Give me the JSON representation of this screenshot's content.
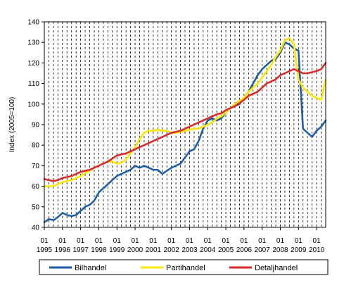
{
  "chart_data": {
    "type": "line",
    "title": "",
    "xlabel": "",
    "ylabel": "Index (2005=100)",
    "ylim": [
      40,
      140
    ],
    "y_ticks": [
      40,
      50,
      60,
      70,
      80,
      90,
      100,
      110,
      120,
      130,
      140
    ],
    "x_range": [
      1995.0,
      2010.5
    ],
    "x_ticks": [
      {
        "year": 1995,
        "month_label": "01",
        "year_label": "1995"
      },
      {
        "year": 1996,
        "month_label": "01",
        "year_label": "1996"
      },
      {
        "year": 1997,
        "month_label": "01",
        "year_label": "1997"
      },
      {
        "year": 1998,
        "month_label": "01",
        "year_label": "1998"
      },
      {
        "year": 1999,
        "month_label": "01",
        "year_label": "1999"
      },
      {
        "year": 2000,
        "month_label": "01",
        "year_label": "2000"
      },
      {
        "year": 2001,
        "month_label": "01",
        "year_label": "2001"
      },
      {
        "year": 2002,
        "month_label": "01",
        "year_label": "2002"
      },
      {
        "year": 2003,
        "month_label": "01",
        "year_label": "2003"
      },
      {
        "year": 2004,
        "month_label": "01",
        "year_label": "2004"
      },
      {
        "year": 2005,
        "month_label": "01",
        "year_label": "2005"
      },
      {
        "year": 2006,
        "month_label": "01",
        "year_label": "2006"
      },
      {
        "year": 2007,
        "month_label": "01",
        "year_label": "2007"
      },
      {
        "year": 2008,
        "month_label": "01",
        "year_label": "2008"
      },
      {
        "year": 2009,
        "month_label": "01",
        "year_label": "2009"
      },
      {
        "year": 2010,
        "month_label": "01",
        "year_label": "2010"
      }
    ],
    "grid": {
      "horizontal": false,
      "vertical": "dashed-quarterly"
    },
    "legend_position": "bottom",
    "series": [
      {
        "name": "Bilhandel",
        "color": "#1f5fa6",
        "x": [
          1995.0,
          1995.25,
          1995.5,
          1995.75,
          1996.0,
          1996.25,
          1996.5,
          1996.75,
          1997.0,
          1997.25,
          1997.5,
          1997.75,
          1998.0,
          1998.25,
          1998.5,
          1998.75,
          1999.0,
          1999.25,
          1999.5,
          1999.75,
          2000.0,
          2000.25,
          2000.5,
          2000.75,
          2001.0,
          2001.25,
          2001.5,
          2001.75,
          2002.0,
          2002.25,
          2002.5,
          2002.75,
          2003.0,
          2003.25,
          2003.5,
          2003.75,
          2004.0,
          2004.25,
          2004.5,
          2004.75,
          2005.0,
          2005.25,
          2005.5,
          2005.75,
          2006.0,
          2006.25,
          2006.5,
          2006.75,
          2007.0,
          2007.25,
          2007.5,
          2007.75,
          2008.0,
          2008.25,
          2008.5,
          2008.75,
          2009.0,
          2009.25,
          2009.5,
          2009.75,
          2010.0,
          2010.25,
          2010.5
        ],
        "values": [
          42.5,
          44,
          43.5,
          45,
          47,
          46,
          45.5,
          46,
          48,
          50,
          51,
          53,
          57,
          59,
          61,
          63,
          65,
          66,
          67,
          68,
          70,
          69,
          70,
          69,
          68,
          68,
          66,
          67.5,
          69,
          70,
          71,
          74,
          77,
          78,
          82,
          88,
          92,
          93,
          92,
          93,
          96,
          98,
          99,
          100,
          103,
          106,
          110,
          114,
          117,
          119,
          121,
          122,
          125,
          130,
          129,
          127,
          126,
          88,
          86,
          84,
          87,
          89,
          92
        ]
      },
      {
        "name": "Partihandel",
        "color": "#ffe600",
        "x": [
          1995.0,
          1995.25,
          1995.5,
          1995.75,
          1996.0,
          1996.25,
          1996.5,
          1996.75,
          1997.0,
          1997.25,
          1997.5,
          1997.75,
          1998.0,
          1998.25,
          1998.5,
          1998.75,
          1999.0,
          1999.25,
          1999.5,
          1999.75,
          2000.0,
          2000.25,
          2000.5,
          2000.75,
          2001.0,
          2001.25,
          2001.5,
          2001.75,
          2002.0,
          2002.25,
          2002.5,
          2002.75,
          2003.0,
          2003.25,
          2003.5,
          2003.75,
          2004.0,
          2004.25,
          2004.5,
          2004.75,
          2005.0,
          2005.25,
          2005.5,
          2005.75,
          2006.0,
          2006.25,
          2006.5,
          2006.75,
          2007.0,
          2007.25,
          2007.5,
          2007.75,
          2008.0,
          2008.25,
          2008.5,
          2008.75,
          2009.0,
          2009.25,
          2009.5,
          2009.75,
          2010.0,
          2010.25,
          2010.5
        ],
        "values": [
          60,
          60,
          60,
          61,
          62,
          62.5,
          63,
          64,
          65,
          66.5,
          67.5,
          69,
          70,
          71,
          72,
          72,
          71,
          71.5,
          73,
          76,
          79,
          83,
          86,
          87,
          87,
          87.5,
          87,
          87,
          86,
          86,
          86.5,
          87,
          87.5,
          88,
          88,
          89,
          90,
          91,
          93,
          94,
          96,
          98,
          100,
          101.5,
          103,
          106,
          108,
          110,
          113,
          116,
          119,
          123,
          126,
          131,
          132,
          129,
          112,
          108,
          106,
          104,
          103,
          102,
          112
        ]
      },
      {
        "name": "Detaljhandel",
        "color": "#d92b2b",
        "x": [
          1995.0,
          1995.25,
          1995.5,
          1995.75,
          1996.0,
          1996.25,
          1996.5,
          1996.75,
          1997.0,
          1997.25,
          1997.5,
          1997.75,
          1998.0,
          1998.25,
          1998.5,
          1998.75,
          1999.0,
          1999.25,
          1999.5,
          1999.75,
          2000.0,
          2000.25,
          2000.5,
          2000.75,
          2001.0,
          2001.25,
          2001.5,
          2001.75,
          2002.0,
          2002.25,
          2002.5,
          2002.75,
          2003.0,
          2003.25,
          2003.5,
          2003.75,
          2004.0,
          2004.25,
          2004.5,
          2004.75,
          2005.0,
          2005.25,
          2005.5,
          2005.75,
          2006.0,
          2006.25,
          2006.5,
          2006.75,
          2007.0,
          2007.25,
          2007.5,
          2007.75,
          2008.0,
          2008.25,
          2008.5,
          2008.75,
          2009.0,
          2009.25,
          2009.5,
          2009.75,
          2010.0,
          2010.25,
          2010.5
        ],
        "values": [
          63.5,
          63,
          62.5,
          63,
          64,
          64.5,
          65,
          66,
          67,
          67.5,
          68,
          69,
          70,
          71,
          72,
          73.5,
          75,
          75.5,
          76,
          77,
          78,
          79,
          80,
          81,
          82,
          83,
          84,
          85,
          86,
          86.5,
          87,
          88,
          89,
          90,
          91,
          92,
          93,
          94,
          95,
          95.5,
          97,
          98,
          99,
          100.5,
          102,
          104,
          105,
          106,
          108,
          110,
          111,
          112,
          114,
          115,
          116,
          117,
          116,
          115,
          115,
          115.5,
          116,
          117,
          120
        ]
      }
    ]
  }
}
